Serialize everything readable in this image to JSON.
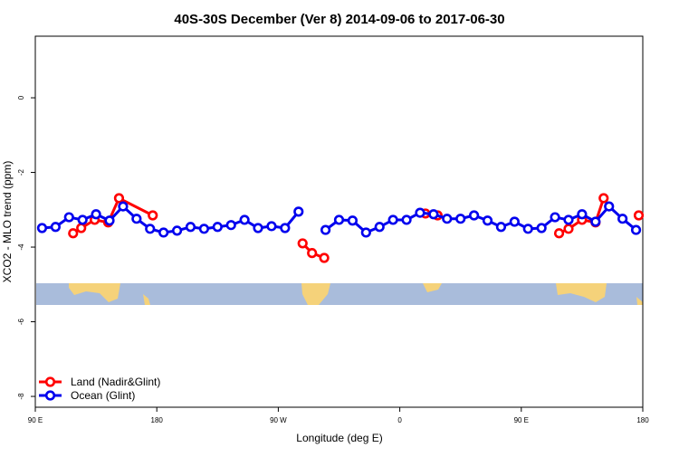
{
  "chart_data": {
    "type": "line",
    "title": "40S-30S December (Ver 8)   2014-09-06 to 2017-06-30",
    "x_label": "Longitude (deg E)",
    "y_label": "XCO2 - MLO trend (ppm)",
    "xlim": [
      90,
      540
    ],
    "ylim": [
      -8.29,
      1.65
    ],
    "xticks": [
      {
        "value": 90,
        "label": "90 E"
      },
      {
        "value": 180,
        "label": "180"
      },
      {
        "value": 270,
        "label": "90 W"
      },
      {
        "value": 360,
        "label": "0"
      },
      {
        "value": 450,
        "label": "90 E"
      },
      {
        "value": 540,
        "label": "180"
      }
    ],
    "yticks": [
      0,
      -2,
      -4,
      -6,
      -8
    ],
    "legend": "bottom-left",
    "series": [
      {
        "name": "Land (Nadir&Glint)",
        "color": "#ff0000",
        "x": [
          118,
          124,
          134,
          144,
          152,
          177,
          230,
          288,
          295,
          304,
          340,
          379,
          388,
          430,
          478,
          485,
          495,
          505,
          511,
          525,
          537
        ],
        "values": [
          -3.63,
          -3.49,
          -3.27,
          -3.34,
          -2.69,
          -3.15,
          null,
          -3.9,
          -4.16,
          -4.29,
          null,
          -3.1,
          -3.15,
          null,
          -3.63,
          -3.51,
          -3.27,
          -3.34,
          -2.69,
          null,
          -3.15
        ]
      },
      {
        "name": "Ocean (Glint)",
        "color": "#0000ee",
        "x": [
          95,
          105,
          115,
          125,
          135,
          145,
          155,
          165,
          175,
          185,
          195,
          205,
          215,
          225,
          235,
          245,
          255,
          265,
          275,
          285,
          295,
          305,
          315,
          325,
          335,
          345,
          355,
          365,
          375,
          385,
          395,
          405,
          415,
          425,
          435,
          445,
          455,
          465,
          475,
          485,
          495,
          505,
          515,
          525,
          535
        ],
        "values": [
          -3.49,
          -3.46,
          -3.2,
          -3.27,
          -3.12,
          -3.29,
          -2.91,
          -3.24,
          -3.51,
          -3.61,
          -3.56,
          -3.46,
          -3.51,
          -3.46,
          -3.41,
          -3.27,
          -3.49,
          -3.44,
          -3.49,
          -3.05,
          null,
          -3.54,
          -3.27,
          -3.29,
          -3.61,
          -3.46,
          -3.27,
          -3.27,
          -3.08,
          -3.12,
          -3.24,
          -3.24,
          -3.15,
          -3.29,
          -3.46,
          -3.32,
          -3.51,
          -3.49,
          -3.2,
          -3.27,
          -3.12,
          -3.32,
          -2.91,
          -3.24,
          -3.54
        ]
      }
    ]
  }
}
